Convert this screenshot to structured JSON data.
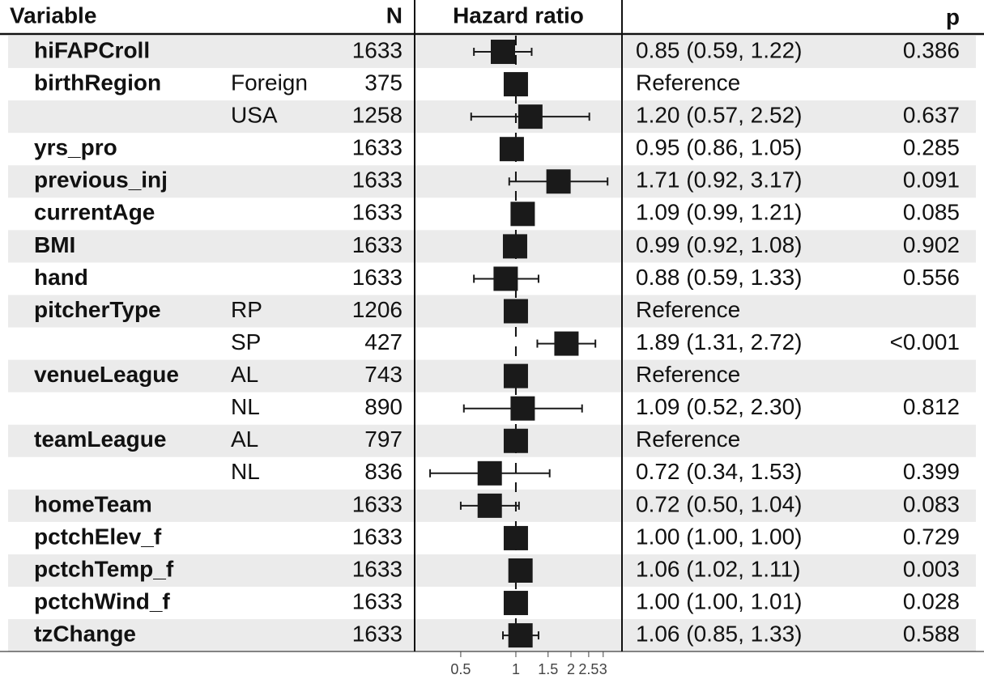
{
  "chart_data": {
    "type": "forest",
    "headers": {
      "variable": "Variable",
      "n": "N",
      "plot": "Hazard ratio",
      "p": "p"
    },
    "xlim": [
      0.28,
      3.8
    ],
    "xticks": [
      0.5,
      1,
      1.5,
      2,
      2.5,
      3
    ],
    "log_scale": true,
    "reference_line": 1,
    "color": "#1a1a1a",
    "rows": [
      {
        "variable": "hiFAPCroll",
        "level": null,
        "n": 1633,
        "hr": 0.85,
        "lo": 0.59,
        "hi": 1.22,
        "estimate": "0.85 (0.59, 1.22)",
        "p": "0.386"
      },
      {
        "variable": "birthRegion",
        "level": "Foreign",
        "n": 375,
        "hr": 1,
        "lo": null,
        "hi": null,
        "estimate": "Reference",
        "p": null
      },
      {
        "variable": null,
        "level": "USA",
        "n": 1258,
        "hr": 1.2,
        "lo": 0.57,
        "hi": 2.52,
        "estimate": "1.20 (0.57, 2.52)",
        "p": "0.637"
      },
      {
        "variable": "yrs_pro",
        "level": null,
        "n": 1633,
        "hr": 0.95,
        "lo": 0.86,
        "hi": 1.05,
        "estimate": "0.95 (0.86, 1.05)",
        "p": "0.285"
      },
      {
        "variable": "previous_inj",
        "level": null,
        "n": 1633,
        "hr": 1.71,
        "lo": 0.92,
        "hi": 3.17,
        "estimate": "1.71 (0.92, 3.17)",
        "p": "0.091"
      },
      {
        "variable": "currentAge",
        "level": null,
        "n": 1633,
        "hr": 1.09,
        "lo": 0.99,
        "hi": 1.21,
        "estimate": "1.09 (0.99, 1.21)",
        "p": "0.085"
      },
      {
        "variable": "BMI",
        "level": null,
        "n": 1633,
        "hr": 0.99,
        "lo": 0.92,
        "hi": 1.08,
        "estimate": "0.99 (0.92, 1.08)",
        "p": "0.902"
      },
      {
        "variable": "hand",
        "level": null,
        "n": 1633,
        "hr": 0.88,
        "lo": 0.59,
        "hi": 1.33,
        "estimate": "0.88 (0.59, 1.33)",
        "p": "0.556"
      },
      {
        "variable": "pitcherType",
        "level": "RP",
        "n": 1206,
        "hr": 1,
        "lo": null,
        "hi": null,
        "estimate": "Reference",
        "p": null
      },
      {
        "variable": null,
        "level": "SP",
        "n": 427,
        "hr": 1.89,
        "lo": 1.31,
        "hi": 2.72,
        "estimate": "1.89 (1.31, 2.72)",
        "p": "<0.001"
      },
      {
        "variable": "venueLeague",
        "level": "AL",
        "n": 743,
        "hr": 1,
        "lo": null,
        "hi": null,
        "estimate": "Reference",
        "p": null
      },
      {
        "variable": null,
        "level": "NL",
        "n": 890,
        "hr": 1.09,
        "lo": 0.52,
        "hi": 2.3,
        "estimate": "1.09 (0.52, 2.30)",
        "p": "0.812"
      },
      {
        "variable": "teamLeague",
        "level": "AL",
        "n": 797,
        "hr": 1,
        "lo": null,
        "hi": null,
        "estimate": "Reference",
        "p": null
      },
      {
        "variable": null,
        "level": "NL",
        "n": 836,
        "hr": 0.72,
        "lo": 0.34,
        "hi": 1.53,
        "estimate": "0.72 (0.34, 1.53)",
        "p": "0.399"
      },
      {
        "variable": "homeTeam",
        "level": null,
        "n": 1633,
        "hr": 0.72,
        "lo": 0.5,
        "hi": 1.04,
        "estimate": "0.72 (0.50, 1.04)",
        "p": "0.083"
      },
      {
        "variable": "pctchElev_f",
        "level": null,
        "n": 1633,
        "hr": 1.0,
        "lo": 1.0,
        "hi": 1.0,
        "estimate": "1.00 (1.00, 1.00)",
        "p": "0.729"
      },
      {
        "variable": "pctchTemp_f",
        "level": null,
        "n": 1633,
        "hr": 1.06,
        "lo": 1.02,
        "hi": 1.11,
        "estimate": "1.06 (1.02, 1.11)",
        "p": "0.003"
      },
      {
        "variable": "pctchWind_f",
        "level": null,
        "n": 1633,
        "hr": 1.0,
        "lo": 1.0,
        "hi": 1.01,
        "estimate": "1.00 (1.00, 1.01)",
        "p": "0.028"
      },
      {
        "variable": "tzChange",
        "level": null,
        "n": 1633,
        "hr": 1.06,
        "lo": 0.85,
        "hi": 1.33,
        "estimate": "1.06 (0.85, 1.33)",
        "p": "0.588"
      }
    ]
  }
}
